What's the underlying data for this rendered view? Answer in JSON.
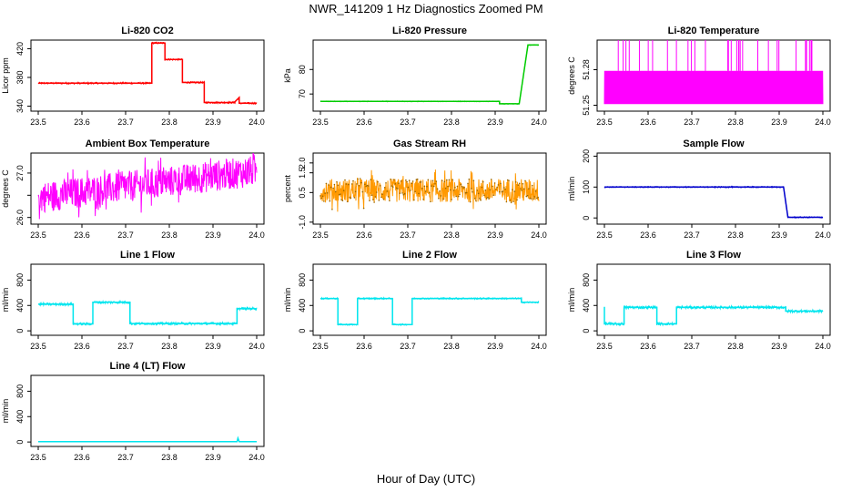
{
  "figure": {
    "title": "NWR_141209  1 Hz Diagnostics Zoomed PM",
    "xlabel": "Hour of Day (UTC)"
  },
  "chart_data": [
    {
      "type": "line",
      "title": "Li-820 CO2",
      "ylabel": "Licor ppm",
      "color": "#ff0000",
      "xlim": [
        23.5,
        24.0
      ],
      "ylim": [
        333,
        432
      ],
      "xticks": [
        "23.5",
        "23.6",
        "23.7",
        "23.8",
        "23.9",
        "24.0"
      ],
      "yticks": [
        {
          "v": 340,
          "label": "340"
        },
        {
          "v": 380,
          "label": "380"
        },
        {
          "v": 420,
          "label": "420"
        }
      ],
      "steps": [
        [
          23.5,
          372
        ],
        [
          23.76,
          372
        ],
        [
          23.76,
          428
        ],
        [
          23.79,
          428
        ],
        [
          23.79,
          405
        ],
        [
          23.83,
          405
        ],
        [
          23.83,
          373
        ],
        [
          23.88,
          373
        ],
        [
          23.88,
          345
        ],
        [
          23.95,
          345
        ],
        [
          23.95,
          346
        ],
        [
          23.96,
          352
        ],
        [
          23.96,
          344
        ],
        [
          24.0,
          344
        ]
      ],
      "noise": 1.2
    },
    {
      "type": "line",
      "title": "Li-820 Pressure",
      "ylabel": "kPa",
      "color": "#00cc00",
      "xlim": [
        23.5,
        24.0
      ],
      "ylim": [
        63,
        92
      ],
      "xticks": [
        "23.5",
        "23.6",
        "23.7",
        "23.8",
        "23.9",
        "24.0"
      ],
      "yticks": [
        {
          "v": 70,
          "label": "70"
        },
        {
          "v": 80,
          "label": "80"
        }
      ],
      "steps": [
        [
          23.5,
          67
        ],
        [
          23.91,
          67
        ],
        [
          23.91,
          66
        ],
        [
          23.955,
          66
        ],
        [
          23.975,
          90
        ],
        [
          24.0,
          90
        ]
      ],
      "noise": 0.15
    },
    {
      "type": "noise",
      "title": "Li-820 Temperature",
      "ylabel": "degrees C",
      "color": "#ff00ff",
      "xlim": [
        23.5,
        24.0
      ],
      "ylim": [
        51.245,
        51.305
      ],
      "xticks": [
        "23.5",
        "23.6",
        "23.7",
        "23.8",
        "23.9",
        "24.0"
      ],
      "yticks": [
        {
          "v": 51.25,
          "label": "51.25"
        },
        {
          "v": 51.28,
          "label": "51.28"
        }
      ],
      "base": 51.251,
      "hi": 51.279,
      "spike_top": 51.305,
      "spikes": 32
    },
    {
      "type": "noise",
      "title": "Ambient Box Temperature",
      "ylabel": "degrees C",
      "color": "#ff00ff",
      "xlim": [
        23.5,
        24.0
      ],
      "ylim": [
        25.85,
        27.45
      ],
      "xticks": [
        "23.5",
        "23.6",
        "23.7",
        "23.8",
        "23.9",
        "24.0"
      ],
      "yticks": [
        {
          "v": 26.0,
          "label": "26.0"
        },
        {
          "v": 26.5,
          "label": ""
        },
        {
          "v": 27.0,
          "label": "27.0"
        }
      ],
      "start": 26.45,
      "end": 27.05,
      "amp": 0.35
    },
    {
      "type": "noise",
      "title": "Gas Stream RH",
      "ylabel": "percent",
      "color": "#ff9900",
      "xlim": [
        23.5,
        24.0
      ],
      "ylim": [
        -1.1,
        2.5
      ],
      "xticks": [
        "23.5",
        "23.6",
        "23.7",
        "23.8",
        "23.9",
        "24.0"
      ],
      "yticks": [
        {
          "v": -1.0,
          "label": "-1.0"
        },
        {
          "v": 0.5,
          "label": "0.5"
        },
        {
          "v": 1.5,
          "label": "1.5"
        },
        {
          "v": 2.0,
          "label": "2.0"
        }
      ],
      "start": 0.6,
      "end": 0.6,
      "amp": 0.6,
      "points": true,
      "pointcolor": "#996600"
    },
    {
      "type": "line",
      "title": "Sample Flow",
      "ylabel": "ml/min",
      "color": "#0000cc",
      "xlim": [
        23.5,
        24.0
      ],
      "ylim": [
        -20,
        210
      ],
      "xticks": [
        "23.5",
        "23.6",
        "23.7",
        "23.8",
        "23.9",
        "24.0"
      ],
      "yticks": [
        {
          "v": 0,
          "label": "0"
        },
        {
          "v": 100,
          "label": "100"
        },
        {
          "v": 200,
          "label": "200"
        }
      ],
      "steps": [
        [
          23.5,
          100
        ],
        [
          23.91,
          100
        ],
        [
          23.92,
          2
        ],
        [
          24.0,
          2
        ]
      ],
      "noise": 2
    },
    {
      "type": "line",
      "title": "Line 1 Flow",
      "ylabel": "ml/min",
      "color": "#00e5ee",
      "xlim": [
        23.5,
        24.0
      ],
      "ylim": [
        -70,
        1050
      ],
      "xticks": [
        "23.5",
        "23.6",
        "23.7",
        "23.8",
        "23.9",
        "24.0"
      ],
      "yticks": [
        {
          "v": 0,
          "label": "0"
        },
        {
          "v": 400,
          "label": "400"
        },
        {
          "v": 800,
          "label": "800"
        }
      ],
      "steps": [
        [
          23.5,
          420
        ],
        [
          23.58,
          420
        ],
        [
          23.58,
          110
        ],
        [
          23.625,
          110
        ],
        [
          23.625,
          450
        ],
        [
          23.71,
          450
        ],
        [
          23.71,
          115
        ],
        [
          23.955,
          115
        ],
        [
          23.955,
          350
        ],
        [
          24.0,
          350
        ]
      ],
      "noise": 20
    },
    {
      "type": "line",
      "title": "Line 2 Flow",
      "ylabel": "ml/min",
      "color": "#00e5ee",
      "xlim": [
        23.5,
        24.0
      ],
      "ylim": [
        -70,
        1050
      ],
      "xticks": [
        "23.5",
        "23.6",
        "23.7",
        "23.8",
        "23.9",
        "24.0"
      ],
      "yticks": [
        {
          "v": 0,
          "label": "0"
        },
        {
          "v": 400,
          "label": "400"
        },
        {
          "v": 800,
          "label": "800"
        }
      ],
      "steps": [
        [
          23.5,
          510
        ],
        [
          23.54,
          510
        ],
        [
          23.54,
          100
        ],
        [
          23.585,
          100
        ],
        [
          23.585,
          510
        ],
        [
          23.665,
          510
        ],
        [
          23.665,
          100
        ],
        [
          23.71,
          100
        ],
        [
          23.71,
          510
        ],
        [
          23.96,
          510
        ],
        [
          23.96,
          450
        ],
        [
          24.0,
          450
        ]
      ],
      "noise": 12
    },
    {
      "type": "line",
      "title": "Line 3 Flow",
      "ylabel": "ml/min",
      "color": "#00e5ee",
      "xlim": [
        23.5,
        24.0
      ],
      "ylim": [
        -70,
        1050
      ],
      "xticks": [
        "23.5",
        "23.6",
        "23.7",
        "23.8",
        "23.9",
        "24.0"
      ],
      "yticks": [
        {
          "v": 0,
          "label": "0"
        },
        {
          "v": 400,
          "label": "400"
        },
        {
          "v": 800,
          "label": "800"
        }
      ],
      "steps": [
        [
          23.5,
          380
        ],
        [
          23.5,
          110
        ],
        [
          23.545,
          110
        ],
        [
          23.545,
          370
        ],
        [
          23.62,
          370
        ],
        [
          23.62,
          110
        ],
        [
          23.665,
          110
        ],
        [
          23.665,
          370
        ],
        [
          23.915,
          370
        ],
        [
          23.915,
          310
        ],
        [
          24.0,
          310
        ]
      ],
      "noise": 22
    },
    {
      "type": "line",
      "title": "Line 4 (LT) Flow",
      "ylabel": "ml/min",
      "color": "#00e5ee",
      "xlim": [
        23.5,
        24.0
      ],
      "ylim": [
        -70,
        1050
      ],
      "xticks": [
        "23.5",
        "23.6",
        "23.7",
        "23.8",
        "23.9",
        "24.0"
      ],
      "yticks": [
        {
          "v": 0,
          "label": "0"
        },
        {
          "v": 400,
          "label": "400"
        },
        {
          "v": 800,
          "label": "800"
        }
      ],
      "steps": [
        [
          23.5,
          5
        ],
        [
          23.955,
          5
        ],
        [
          23.957,
          60
        ],
        [
          23.96,
          5
        ],
        [
          24.0,
          5
        ]
      ],
      "noise": 2
    }
  ]
}
